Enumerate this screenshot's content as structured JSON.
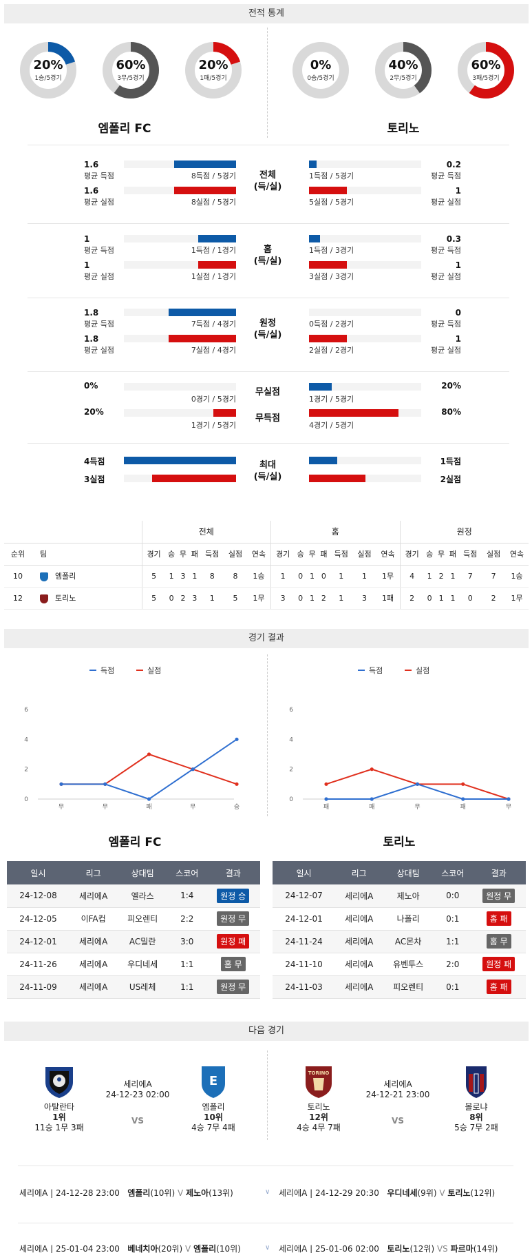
{
  "headers": {
    "stats": "전적 통계",
    "results": "경기 결과",
    "next": "다음 경기"
  },
  "teams": {
    "home": "엠폴리 FC",
    "away": "토리노"
  },
  "donuts": [
    {
      "pct": "20%",
      "sub": "1승/5경기",
      "value": 0.2,
      "color": "#0d5aa7"
    },
    {
      "pct": "60%",
      "sub": "3무/5경기",
      "value": 0.6,
      "color": "#555555"
    },
    {
      "pct": "20%",
      "sub": "1패/5경기",
      "value": 0.2,
      "color": "#d50f0f"
    },
    {
      "pct": "0%",
      "sub": "0승/5경기",
      "value": 0.0,
      "color": "#0d5aa7"
    },
    {
      "pct": "40%",
      "sub": "2무/5경기",
      "value": 0.4,
      "color": "#555555"
    },
    {
      "pct": "60%",
      "sub": "3패/5경기",
      "value": 0.6,
      "color": "#d50f0f"
    }
  ],
  "stat_groups": [
    {
      "cat": [
        "전체",
        "(득/실)"
      ],
      "rows": [
        {
          "lv": "1.6",
          "ll": "평균 득점",
          "lnote": "8득점 / 5경기",
          "lfrac": 0.55,
          "rv": "0.2",
          "rl": "평균 득점",
          "rnote": "1득점 / 5경기",
          "rfrac": 0.07,
          "color": "blue"
        },
        {
          "lv": "1.6",
          "ll": "평균 실점",
          "lnote": "8실점 / 5경기",
          "lfrac": 0.55,
          "rv": "1",
          "rl": "평균 실점",
          "rnote": "5실점 / 5경기",
          "rfrac": 0.34,
          "color": "red"
        }
      ]
    },
    {
      "cat": [
        "홈",
        "(득/실)"
      ],
      "rows": [
        {
          "lv": "1",
          "ll": "평균 득점",
          "lnote": "1득점 / 1경기",
          "lfrac": 0.34,
          "rv": "0.3",
          "rl": "평균 득점",
          "rnote": "1득점 / 3경기",
          "rfrac": 0.1,
          "color": "blue"
        },
        {
          "lv": "1",
          "ll": "평균 실점",
          "lnote": "1실점 / 1경기",
          "lfrac": 0.34,
          "rv": "1",
          "rl": "평균 실점",
          "rnote": "3실점 / 3경기",
          "rfrac": 0.34,
          "color": "red"
        }
      ]
    },
    {
      "cat": [
        "원정",
        "(득/실)"
      ],
      "rows": [
        {
          "lv": "1.8",
          "ll": "평균 득점",
          "lnote": "7득점 / 4경기",
          "lfrac": 0.6,
          "rv": "0",
          "rl": "평균 득점",
          "rnote": "0득점 / 2경기",
          "rfrac": 0.0,
          "color": "blue"
        },
        {
          "lv": "1.8",
          "ll": "평균 실점",
          "lnote": "7실점 / 4경기",
          "lfrac": 0.6,
          "rv": "1",
          "rl": "평균 실점",
          "rnote": "2실점 / 2경기",
          "rfrac": 0.34,
          "color": "red"
        }
      ]
    }
  ],
  "pct_group": {
    "rows": [
      {
        "cat": "무실점",
        "lv": "0%",
        "lnote": "0경기 / 5경기",
        "lfrac": 0.0,
        "rv": "20%",
        "rnote": "1경기 / 5경기",
        "rfrac": 0.2,
        "color": "blue"
      },
      {
        "cat": "무득점",
        "lv": "20%",
        "lnote": "1경기 / 5경기",
        "lfrac": 0.2,
        "rv": "80%",
        "rnote": "4경기 / 5경기",
        "rfrac": 0.8,
        "color": "red"
      }
    ]
  },
  "max_group": {
    "cat": [
      "최대",
      "(득/실)"
    ],
    "rows": [
      {
        "lv": "4득점",
        "lfrac": 1.0,
        "rv": "1득점",
        "rfrac": 0.25,
        "color": "blue"
      },
      {
        "lv": "3실점",
        "lfrac": 0.75,
        "rv": "2실점",
        "rfrac": 0.5,
        "color": "red"
      }
    ]
  },
  "rank_table": {
    "groups": [
      "전체",
      "홈",
      "원정"
    ],
    "cols_left": [
      "순위",
      "팀"
    ],
    "cols": [
      "경기",
      "승",
      "무",
      "패",
      "득점",
      "실점",
      "연속"
    ],
    "rows": [
      {
        "rank": "10",
        "team": "엠폴리",
        "icon": "empoli-icon",
        "all": [
          "5",
          "1",
          "3",
          "1",
          "8",
          "8",
          "1승"
        ],
        "home": [
          "1",
          "0",
          "1",
          "0",
          "1",
          "1",
          "1무"
        ],
        "away": [
          "4",
          "1",
          "2",
          "1",
          "7",
          "7",
          "1승"
        ]
      },
      {
        "rank": "12",
        "team": "토리노",
        "icon": "torino-icon",
        "all": [
          "5",
          "0",
          "2",
          "3",
          "1",
          "5",
          "1무"
        ],
        "home": [
          "3",
          "0",
          "1",
          "2",
          "1",
          "3",
          "1패"
        ],
        "away": [
          "2",
          "0",
          "1",
          "1",
          "0",
          "2",
          "1무"
        ]
      }
    ]
  },
  "chart_data": [
    {
      "type": "line",
      "categories": [
        "무",
        "무",
        "패",
        "무",
        "승"
      ],
      "series": [
        {
          "name": "득점",
          "values": [
            1,
            1,
            0,
            2,
            4
          ],
          "color": "#2f6fd0"
        },
        {
          "name": "실점",
          "values": [
            1,
            1,
            3,
            2,
            1
          ],
          "color": "#e0301e"
        }
      ],
      "yticks": [
        "0",
        "2",
        "4",
        "6"
      ],
      "ylim": [
        0,
        6
      ],
      "legend": "top-center",
      "grid": false
    },
    {
      "type": "line",
      "categories": [
        "패",
        "패",
        "무",
        "패",
        "무"
      ],
      "series": [
        {
          "name": "득점",
          "values": [
            0,
            0,
            1,
            0,
            0
          ],
          "color": "#2f6fd0"
        },
        {
          "name": "실점",
          "values": [
            1,
            2,
            1,
            1,
            0
          ],
          "color": "#e0301e"
        }
      ],
      "yticks": [
        "0",
        "2",
        "4",
        "6"
      ],
      "ylim": [
        0,
        6
      ],
      "legend": "top-center",
      "grid": false
    }
  ],
  "results_tables": {
    "columns": [
      "일시",
      "리그",
      "상대팀",
      "스코어",
      "결과"
    ],
    "home": [
      {
        "date": "24-12-08",
        "league": "세리에A",
        "opp": "엘라스",
        "score": "1:4",
        "result": "원정 승",
        "badge": "blue"
      },
      {
        "date": "24-12-05",
        "league": "이FA컵",
        "opp": "피오렌티",
        "score": "2:2",
        "result": "원정 무",
        "badge": "gray"
      },
      {
        "date": "24-12-01",
        "league": "세리에A",
        "opp": "AC밀란",
        "score": "3:0",
        "result": "원정 패",
        "badge": "red"
      },
      {
        "date": "24-11-26",
        "league": "세리에A",
        "opp": "우디네세",
        "score": "1:1",
        "result": "홈 무",
        "badge": "gray"
      },
      {
        "date": "24-11-09",
        "league": "세리에A",
        "opp": "US레체",
        "score": "1:1",
        "result": "원정 무",
        "badge": "gray"
      }
    ],
    "away": [
      {
        "date": "24-12-07",
        "league": "세리에A",
        "opp": "제노아",
        "score": "0:0",
        "result": "원정 무",
        "badge": "gray"
      },
      {
        "date": "24-12-01",
        "league": "세리에A",
        "opp": "나폴리",
        "score": "0:1",
        "result": "홈 패",
        "badge": "red"
      },
      {
        "date": "24-11-24",
        "league": "세리에A",
        "opp": "AC몬차",
        "score": "1:1",
        "result": "홈 무",
        "badge": "gray"
      },
      {
        "date": "24-11-10",
        "league": "세리에A",
        "opp": "유벤투스",
        "score": "2:0",
        "result": "원정 패",
        "badge": "red"
      },
      {
        "date": "24-11-03",
        "league": "세리에A",
        "opp": "피오렌티",
        "score": "0:1",
        "result": "홈 패",
        "badge": "red"
      }
    ]
  },
  "next_match": {
    "left": {
      "home": {
        "name": "아탈란타",
        "rank": "1위",
        "record": "11승 1무 3패",
        "crest_color": "#1a4e9b"
      },
      "away": {
        "name": "엠폴리",
        "rank": "10위",
        "record": "4승 7무 4패",
        "crest_color": "#1c6fb8"
      },
      "league": "세리에A",
      "datetime": "24-12-23 02:00",
      "vs": "VS"
    },
    "right": {
      "home": {
        "name": "토리노",
        "rank": "12위",
        "record": "4승 4무 7패",
        "crest_color": "#8a1d1d"
      },
      "away": {
        "name": "볼로냐",
        "rank": "8위",
        "record": "5승 7무 2패",
        "crest_color": "#a3161a"
      },
      "league": "세리에A",
      "datetime": "24-12-21 23:00",
      "vs": "VS",
      "torino_label": "TORINO"
    }
  },
  "upcoming": [
    {
      "left_info": "세리에A | 24-12-28 23:00",
      "left_t1": "엠폴리",
      "left_r1": "(10위)",
      "left_vs": "V",
      "left_t2": "제노아",
      "left_r2": "(13위)",
      "right_info": "세리에A | 24-12-29 20:30",
      "right_t1": "우디네세",
      "right_r1": "(9위)",
      "right_vs": "V",
      "right_t2": "토리노",
      "right_r2": "(12위)"
    },
    {
      "left_info": "세리에A | 25-01-04 23:00",
      "left_t1": "베네치아",
      "left_r1": "(20위)",
      "left_vs": "V",
      "left_t2": "엠폴리",
      "left_r2": "(10위)",
      "right_info": "세리에A | 25-01-06 02:00",
      "right_t1": "토리노",
      "right_r1": "(12위)",
      "right_vs": "VS",
      "right_t2": "파르마",
      "right_r2": "(14위)"
    }
  ]
}
